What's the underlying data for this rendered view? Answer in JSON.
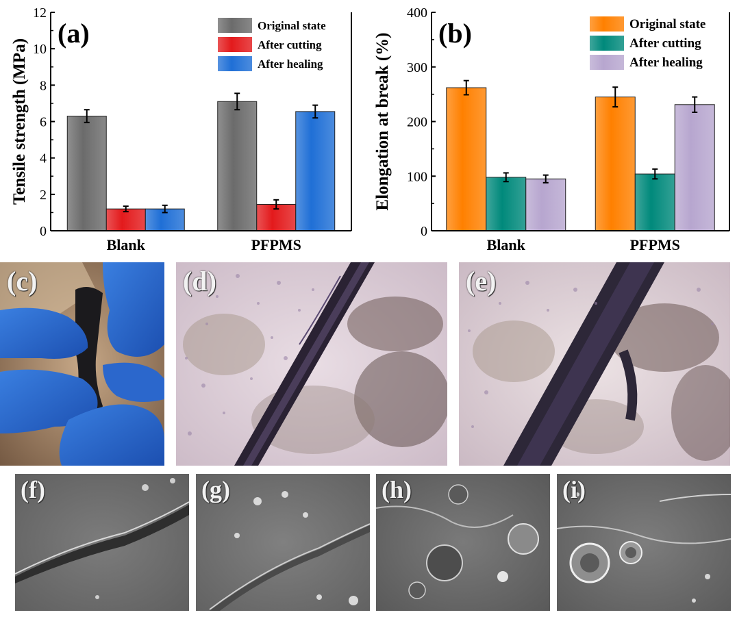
{
  "chart_data": [
    {
      "type": "bar",
      "panel_label": "(a)",
      "categories": [
        "Blank",
        "PFPMS"
      ],
      "series": [
        {
          "name": "Original state",
          "values": [
            6.3,
            7.1
          ],
          "errors": [
            0.35,
            0.45
          ],
          "color": "#6b6b6b"
        },
        {
          "name": "After cutting",
          "values": [
            1.2,
            1.45
          ],
          "errors": [
            0.15,
            0.25
          ],
          "color": "#e31a1c"
        },
        {
          "name": "After healing",
          "values": [
            1.2,
            6.55
          ],
          "errors": [
            0.2,
            0.35
          ],
          "color": "#1f6fd6"
        }
      ],
      "ylabel": "Tensile strength (MPa)",
      "ylim": [
        0,
        12
      ],
      "yticks": [
        0,
        2,
        4,
        6,
        8,
        10,
        12
      ],
      "legend_position": "top-right",
      "grid": false
    },
    {
      "type": "bar",
      "panel_label": "(b)",
      "categories": [
        "Blank",
        "PFPMS"
      ],
      "series": [
        {
          "name": "Original state",
          "values": [
            262,
            245
          ],
          "errors": [
            13,
            18
          ],
          "color": "#ff8000"
        },
        {
          "name": "After cutting",
          "values": [
            98,
            104
          ],
          "errors": [
            8,
            9
          ],
          "color": "#00897b"
        },
        {
          "name": "After healing",
          "values": [
            95,
            231
          ],
          "errors": [
            7,
            14
          ],
          "color": "#b7a6cf"
        }
      ],
      "ylabel": "Elongation at break (%)",
      "ylim": [
        0,
        400
      ],
      "yticks": [
        0,
        100,
        200,
        300,
        400
      ],
      "legend_position": "top-right",
      "grid": false
    }
  ],
  "photos": [
    {
      "label": "(c)"
    },
    {
      "label": "(d)"
    },
    {
      "label": "(e)"
    }
  ],
  "sem_images": [
    {
      "label": "(f)"
    },
    {
      "label": "(g)"
    },
    {
      "label": "(h)"
    },
    {
      "label": "(i)"
    }
  ]
}
